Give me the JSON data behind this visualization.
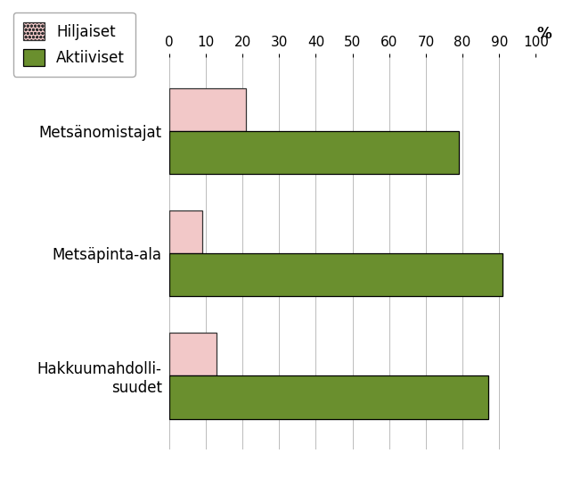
{
  "categories": [
    "Metsänomistajat",
    "Metsäpinta-ala",
    "Hakkuumahdolli-\nsuudet"
  ],
  "hiljaiset": [
    21,
    9,
    13
  ],
  "aktiiviset": [
    79,
    91,
    87
  ],
  "hiljaiset_color": "#f2c8c8",
  "hiljaiset_edge": "#333333",
  "aktiiviset_color": "#6a8f2e",
  "aktiiviset_edge": "#000000",
  "xlim": [
    0,
    100
  ],
  "xticks": [
    0,
    10,
    20,
    30,
    40,
    50,
    60,
    70,
    80,
    90,
    100
  ],
  "xlabel_extra": "%",
  "bar_height": 0.35,
  "legend_hiljaiset": "Hiljaiset",
  "legend_aktiiviset": "Aktiiviset",
  "background_color": "#ffffff",
  "grid_color": "#bbbbbb",
  "tick_fontsize": 11,
  "label_fontsize": 12
}
